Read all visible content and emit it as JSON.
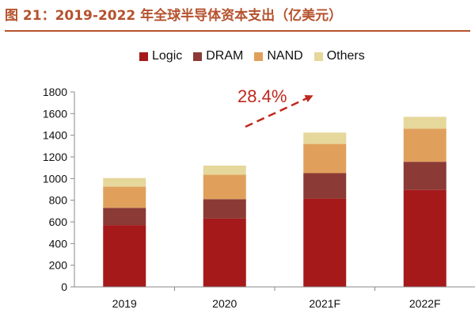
{
  "header": {
    "title": "图 21：2019-2022 年全球半导体资本支出（亿美元）"
  },
  "chart_data": {
    "type": "bar",
    "stacked": true,
    "categories": [
      "2019",
      "2020",
      "2021F",
      "2022F"
    ],
    "series": [
      {
        "name": "Logic",
        "values": [
          570,
          630,
          815,
          895
        ],
        "color": "#a6191a"
      },
      {
        "name": "DRAM",
        "values": [
          160,
          180,
          235,
          260
        ],
        "color": "#8b3a36"
      },
      {
        "name": "NAND",
        "values": [
          195,
          225,
          270,
          305
        ],
        "color": "#e0a05c"
      },
      {
        "name": "Others",
        "values": [
          80,
          85,
          105,
          110
        ],
        "color": "#e6d79a"
      }
    ],
    "ylim": [
      0,
      1800
    ],
    "yticks": [
      0,
      200,
      400,
      600,
      800,
      1000,
      1200,
      1400,
      1600,
      1800
    ],
    "grid": false,
    "legend_position": "top",
    "annotation": {
      "text": "28.4%",
      "color": "#c0281e"
    }
  }
}
